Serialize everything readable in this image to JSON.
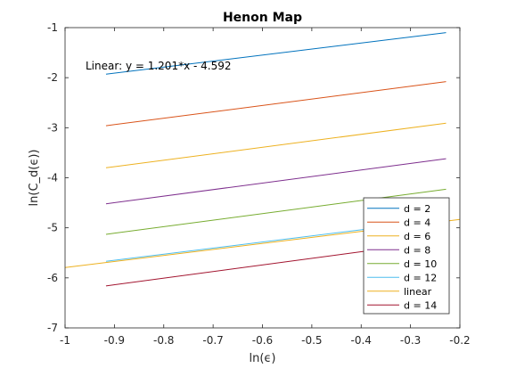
{
  "chart_data": {
    "type": "line",
    "title": "Henon Map",
    "xlabel": "ln(ϵ)",
    "ylabel": "ln(C_d(ϵ))",
    "xlim": [
      -1,
      -0.2
    ],
    "ylim": [
      -7,
      -1
    ],
    "xticks": [
      "-1",
      "-0.9",
      "-0.8",
      "-0.7",
      "-0.6",
      "-0.5",
      "-0.4",
      "-0.3",
      "-0.2"
    ],
    "yticks": [
      "-1",
      "-2",
      "-3",
      "-4",
      "-5",
      "-6",
      "-7"
    ],
    "annotation": "Linear:  y = 1.201*x - 4.592",
    "legend_position": "bottom-right",
    "series": [
      {
        "name": "d = 2",
        "color": "#0072BD",
        "x": [
          -0.917,
          -0.228
        ],
        "y": [
          -1.93,
          -1.1
        ]
      },
      {
        "name": "d = 4",
        "color": "#D95319",
        "x": [
          -0.917,
          -0.228
        ],
        "y": [
          -2.96,
          -2.08
        ]
      },
      {
        "name": "d = 6",
        "color": "#EDB120",
        "x": [
          -0.917,
          -0.228
        ],
        "y": [
          -3.8,
          -2.91
        ]
      },
      {
        "name": "d = 8",
        "color": "#7E2F8E",
        "x": [
          -0.917,
          -0.228
        ],
        "y": [
          -4.52,
          -3.62
        ]
      },
      {
        "name": "d = 10",
        "color": "#77AC30",
        "x": [
          -0.917,
          -0.228
        ],
        "y": [
          -5.13,
          -4.23
        ]
      },
      {
        "name": "d = 12",
        "color": "#4DBEEE",
        "x": [
          -0.917,
          -0.228
        ],
        "y": [
          -5.67,
          -4.83
        ]
      },
      {
        "name": "linear",
        "color": "#EDB120",
        "x": [
          -1.0,
          -0.2
        ],
        "y": [
          -5.793,
          -4.832
        ]
      },
      {
        "name": "d = 14",
        "color": "#A2142F",
        "x": [
          -0.917,
          -0.228
        ],
        "y": [
          -6.16,
          -5.25
        ]
      }
    ]
  }
}
